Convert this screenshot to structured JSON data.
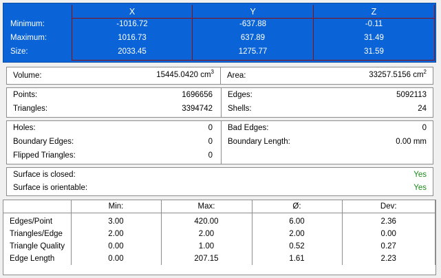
{
  "bbox": {
    "headers": [
      "X",
      "Y",
      "Z"
    ],
    "row_labels": [
      "Minimum:",
      "Maximum:",
      "Size:"
    ],
    "x": [
      "-1016.72",
      "1016.73",
      "2033.45"
    ],
    "y": [
      "-637.88",
      "637.89",
      "1275.77"
    ],
    "z": [
      "-0.11",
      "31.49",
      "31.59"
    ]
  },
  "volume": {
    "label": "Volume:",
    "value": "15445.0420 cm",
    "unit_exp": "3"
  },
  "area": {
    "label": "Area:",
    "value": "33257.5156 cm",
    "unit_exp": "2"
  },
  "counts": {
    "points_label": "Points:",
    "points": "1696656",
    "triangles_label": "Triangles:",
    "triangles": "3394742",
    "edges_label": "Edges:",
    "edges": "5092113",
    "shells_label": "Shells:",
    "shells": "24"
  },
  "defects": {
    "holes_label": "Holes:",
    "holes": "0",
    "boundary_edges_label": "Boundary Edges:",
    "boundary_edges": "0",
    "flipped_label": "Flipped Triangles:",
    "flipped": "0",
    "bad_edges_label": "Bad Edges:",
    "bad_edges": "0",
    "boundary_length_label": "Boundary Length:",
    "boundary_length": "0.00 mm"
  },
  "surface": {
    "closed_label": "Surface is closed:",
    "closed": "Yes",
    "orientable_label": "Surface is orientable:",
    "orientable": "Yes"
  },
  "stats": {
    "headers": [
      "Min:",
      "Max:",
      "Ø:",
      "Dev:"
    ],
    "rows": [
      {
        "label": "Edges/Point",
        "min": "3.00",
        "max": "420.00",
        "avg": "6.00",
        "dev": "2.36"
      },
      {
        "label": "Triangles/Edge",
        "min": "2.00",
        "max": "2.00",
        "avg": "2.00",
        "dev": "0.00"
      },
      {
        "label": "Triangle Quality",
        "min": "0.00",
        "max": "1.00",
        "avg": "0.52",
        "dev": "0.27"
      },
      {
        "label": "Edge Length",
        "min": "0.00",
        "max": "207.15",
        "avg": "1.61",
        "dev": "2.23"
      }
    ]
  },
  "colors": {
    "selection_blue": "#0a64d8",
    "grid_red": "#8a1010",
    "ok_green": "#1a8a1a"
  }
}
